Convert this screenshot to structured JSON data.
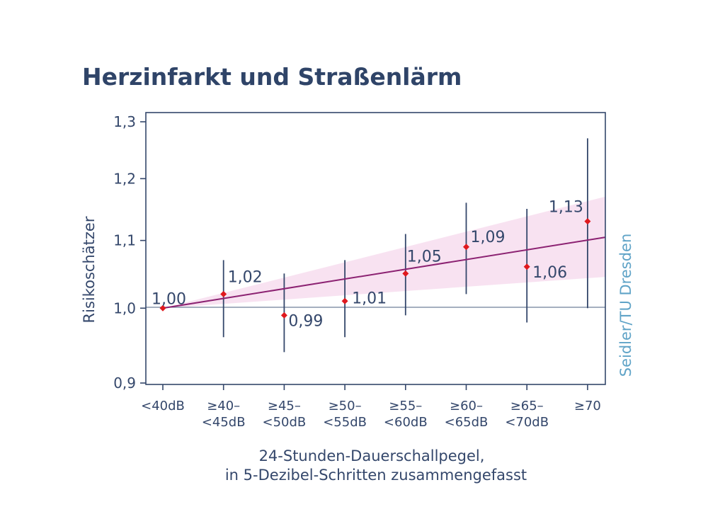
{
  "chart_data": {
    "type": "scatter",
    "title": "Herzinfarkt und Straßenlärm",
    "ylabel": "Risikoschätzer",
    "xlabel_lines": [
      "24-Stunden-Dauerschallpegel,",
      "in 5-Dezibel-Schritten zusammengefasst"
    ],
    "credit": "Seidler/TU Dresden",
    "ylim": [
      0.9,
      1.3
    ],
    "scale": "log",
    "yticks": [
      "0,9",
      "1,0",
      "1,1",
      "1,2",
      "1,3"
    ],
    "ytick_values": [
      0.9,
      1.0,
      1.1,
      1.2,
      1.3
    ],
    "categories": [
      [
        "<40dB"
      ],
      [
        "≥40–",
        "<45dB"
      ],
      [
        "≥45–",
        "<50dB"
      ],
      [
        "≥50–",
        "<55dB"
      ],
      [
        "≥55–",
        "<60dB"
      ],
      [
        "≥60–",
        "<65dB"
      ],
      [
        "≥65–",
        "<70dB"
      ],
      [
        "≥70"
      ]
    ],
    "values": [
      1.0,
      1.02,
      0.99,
      1.01,
      1.05,
      1.09,
      1.06,
      1.13
    ],
    "value_labels": [
      "1,00",
      "1,02",
      "0,99",
      "1,01",
      "1,05",
      "1,09",
      "1,06",
      "1,13"
    ],
    "ci_lower": [
      1.0,
      0.96,
      0.94,
      0.96,
      0.99,
      1.02,
      0.98,
      1.0
    ],
    "ci_upper": [
      1.0,
      1.07,
      1.05,
      1.07,
      1.11,
      1.16,
      1.15,
      1.27
    ],
    "trend": {
      "start": 1.0,
      "end": 1.105
    },
    "band": {
      "start": 1.0,
      "end_lower": 1.045,
      "end_upper": 1.17
    },
    "reference_line": 1.0,
    "colors": {
      "title": "#2f4468",
      "axis": "#34476b",
      "point": "#e0191e",
      "trend": "#8c2272",
      "band": "#f7dff0",
      "credit": "#5fa3c7"
    }
  }
}
